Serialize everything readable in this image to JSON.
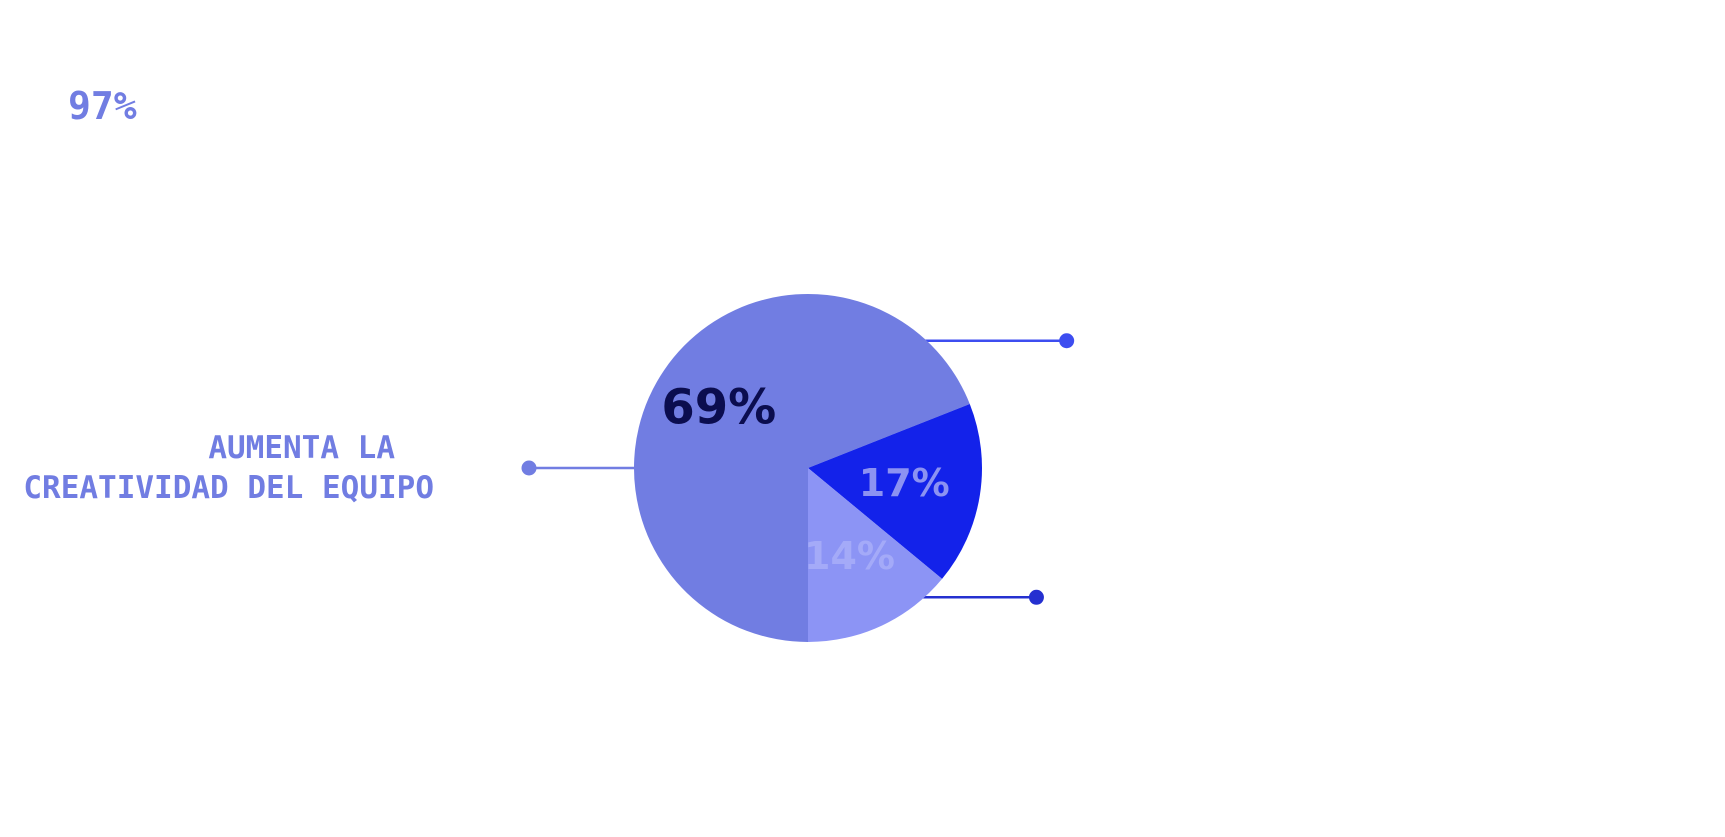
{
  "headline_stat": "97%",
  "category_label": {
    "line1": "AUMENTA LA",
    "line2": "CREATIVIDAD DEL EQUIPO"
  },
  "chart_data": {
    "type": "pie",
    "title": "",
    "slices": [
      {
        "label": "",
        "value": 69,
        "display": "69%",
        "color": "#717de2",
        "label_color": "#0b0d4f",
        "connector_color": "#717de2"
      },
      {
        "label": "",
        "value": 17,
        "display": "17%",
        "color": "#1322ea",
        "label_color": "#8c92f2",
        "connector_color": "#3d4df0"
      },
      {
        "label": "",
        "value": 14,
        "display": "14%",
        "color": "#8c94f5",
        "label_color": "#a4aaf8",
        "connector_color": "#2530d0"
      }
    ],
    "legend": false
  }
}
